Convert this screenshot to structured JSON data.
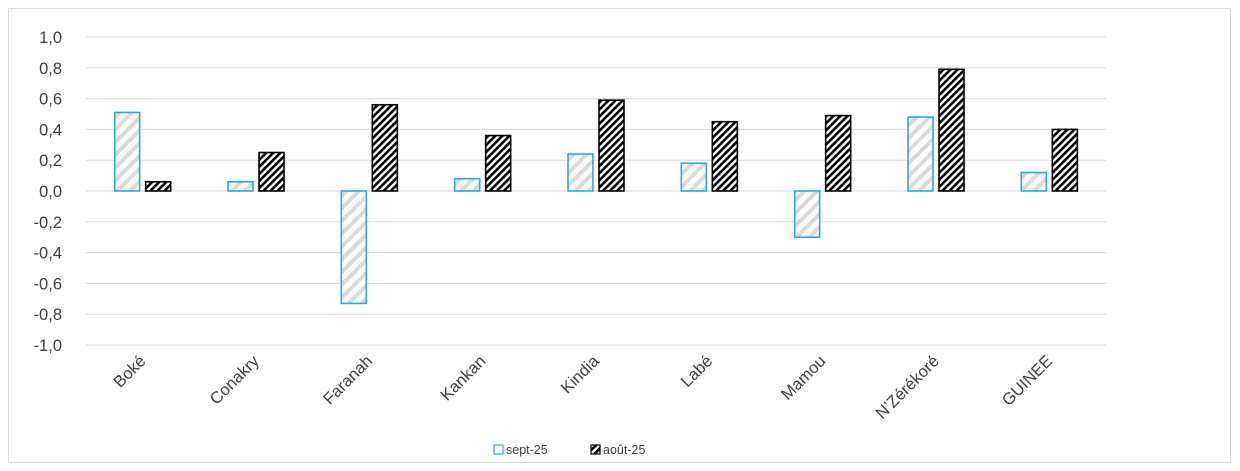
{
  "chart_data": {
    "type": "bar",
    "title": "",
    "xlabel": "",
    "ylabel": "",
    "ylim": [
      -1.0,
      1.0
    ],
    "yticks": [
      "1,0",
      "0,8",
      "0,6",
      "0,4",
      "0,2",
      "0,0",
      "-0,2",
      "-0,4",
      "-0,6",
      "-0,8",
      "-1,0"
    ],
    "ytick_values": [
      1.0,
      0.8,
      0.6,
      0.4,
      0.2,
      0.0,
      -0.2,
      -0.4,
      -0.6,
      -0.8,
      -1.0
    ],
    "grid": true,
    "legend_position": "bottom",
    "categories": [
      "Boké",
      "Conakry",
      "Faranah",
      "Kankan",
      "Kindia",
      "Labé",
      "Mamou",
      "N’Zérékoré",
      "GUINEE"
    ],
    "series": [
      {
        "name": "sept-25",
        "style": "light-diagonal-hatch",
        "border_color": "#27aae1",
        "hatch_color": "#d9d9d9",
        "values": [
          0.51,
          0.06,
          -0.73,
          0.08,
          0.24,
          0.18,
          -0.3,
          0.48,
          0.12
        ]
      },
      {
        "name": "août-25",
        "style": "dark-diagonal-hatch",
        "border_color": "#000000",
        "hatch_color": "#000000",
        "values": [
          0.06,
          0.25,
          0.56,
          0.36,
          0.59,
          0.45,
          0.49,
          0.79,
          0.4
        ]
      }
    ]
  }
}
